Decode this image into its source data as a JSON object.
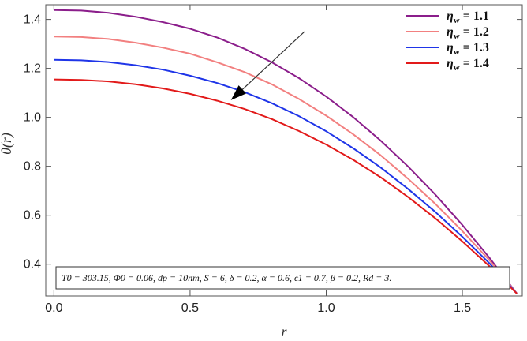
{
  "chart_data": {
    "type": "line",
    "xlabel": "r",
    "ylabel": "θ(r)",
    "xlim": [
      -0.03,
      1.72
    ],
    "ylim": [
      0.27,
      1.46
    ],
    "xticks": [
      0.0,
      0.5,
      1.0,
      1.5
    ],
    "xtick_labels": [
      "0.0",
      "0.5",
      "1.0",
      "1.5"
    ],
    "yticks": [
      0.4,
      0.6,
      0.8,
      1.0,
      1.2,
      1.4
    ],
    "ytick_labels": [
      "0.4",
      "0.6",
      "0.8",
      "1.0",
      "1.2",
      "1.4"
    ],
    "legend_position": "top-right",
    "x": [
      0.0,
      0.1,
      0.2,
      0.3,
      0.4,
      0.5,
      0.6,
      0.7,
      0.8,
      0.9,
      1.0,
      1.1,
      1.2,
      1.3,
      1.4,
      1.5,
      1.6,
      1.7
    ],
    "series": [
      {
        "name": "ηw = 1.1",
        "color": "#8B1E8B",
        "values": [
          1.438,
          1.436,
          1.427,
          1.411,
          1.389,
          1.362,
          1.326,
          1.28,
          1.225,
          1.16,
          1.085,
          1.0,
          0.905,
          0.8,
          0.685,
          0.56,
          0.425,
          0.28
        ]
      },
      {
        "name": "ηw = 1.2",
        "color": "#F28080",
        "values": [
          1.33,
          1.328,
          1.32,
          1.305,
          1.285,
          1.26,
          1.225,
          1.185,
          1.135,
          1.075,
          1.007,
          0.93,
          0.845,
          0.75,
          0.647,
          0.535,
          0.415,
          0.28
        ]
      },
      {
        "name": "ηw = 1.3",
        "color": "#1F35E8",
        "values": [
          1.235,
          1.233,
          1.226,
          1.213,
          1.195,
          1.17,
          1.14,
          1.103,
          1.058,
          1.005,
          0.943,
          0.873,
          0.795,
          0.708,
          0.614,
          0.512,
          0.403,
          0.28
        ]
      },
      {
        "name": "ηw = 1.4",
        "color": "#E21A1A",
        "values": [
          1.155,
          1.153,
          1.147,
          1.135,
          1.118,
          1.096,
          1.068,
          1.034,
          0.993,
          0.944,
          0.889,
          0.826,
          0.755,
          0.675,
          0.588,
          0.493,
          0.391,
          0.28
        ]
      }
    ],
    "annotation_arrow": {
      "from": {
        "x": 0.92,
        "y": 1.35
      },
      "to": {
        "x": 0.65,
        "y": 1.07
      }
    },
    "legend_entries": [
      {
        "symbol": "η",
        "subscript": "w",
        "value": " = 1.1"
      },
      {
        "symbol": "η",
        "subscript": "w",
        "value": " = 1.2"
      },
      {
        "symbol": "η",
        "subscript": "w",
        "value": " = 1.3"
      },
      {
        "symbol": "η",
        "subscript": "w",
        "value": " = 1.4"
      }
    ],
    "params_box": {
      "text": "T0 = 303.15, Φ0 = 0.06, dp = 10nm, S = 6, δ = 0.2, α = 0.6, ϵ1 = 0.7, β = 0.2, Rd = 3."
    }
  }
}
